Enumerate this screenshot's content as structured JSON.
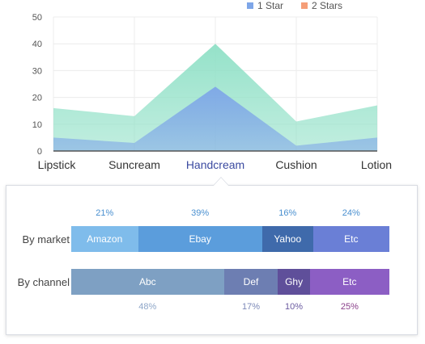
{
  "legend": {
    "star1": {
      "label": "1 Star",
      "color": "#7ea6e8"
    },
    "star2": {
      "label": "2 Stars",
      "color": "#f59e78"
    }
  },
  "chart_data": [
    {
      "type": "area",
      "categories": [
        "Lipstick",
        "Suncream",
        "Handcream",
        "Cushion",
        "Lotion"
      ],
      "highlight_category": "Handcream",
      "yticks": [
        0,
        10,
        20,
        30,
        40,
        50
      ],
      "ylim": [
        0,
        50
      ],
      "grid": true,
      "legend_position": "top-right",
      "series": [
        {
          "name": "1 Star",
          "values": [
            5,
            3,
            24,
            2,
            5
          ],
          "color": "#7ea6e8"
        },
        {
          "name": "2 Stars",
          "values": [
            16,
            13,
            40,
            11,
            17
          ],
          "color": "#8fe0c6"
        }
      ]
    },
    {
      "type": "bar",
      "orientation": "horizontal-stacked-100",
      "rows": [
        {
          "label": "By market",
          "segments": [
            {
              "name": "Amazon",
              "value": 21,
              "pct_label": "21%",
              "color": "#7fbceb",
              "pct_color": "#4a90d0"
            },
            {
              "name": "Ebay",
              "value": 39,
              "pct_label": "39%",
              "color": "#5b9ddc",
              "pct_color": "#4a90d0"
            },
            {
              "name": "Yahoo",
              "value": 16,
              "pct_label": "16%",
              "color": "#3f6aab",
              "pct_color": "#4a90d0"
            },
            {
              "name": "Etc",
              "value": 24,
              "pct_label": "24%",
              "color": "#6a7fd6",
              "pct_color": "#4a90d0"
            }
          ]
        },
        {
          "label": "By channel",
          "segments": [
            {
              "name": "Abc",
              "value": 48,
              "pct_label": "48%",
              "color": "#7ea0c3",
              "pct_color": "#8ea6c8"
            },
            {
              "name": "Def",
              "value": 17,
              "pct_label": "17%",
              "color": "#6d7eb2",
              "pct_color": "#7d8ab8"
            },
            {
              "name": "Ghy",
              "value": 10,
              "pct_label": "10%",
              "color": "#5f4f9a",
              "pct_color": "#6a5aa0"
            },
            {
              "name": "Etc",
              "value": 25,
              "pct_label": "25%",
              "color": "#8c5ec4",
              "pct_color": "#8a3f8a"
            }
          ]
        }
      ]
    }
  ]
}
